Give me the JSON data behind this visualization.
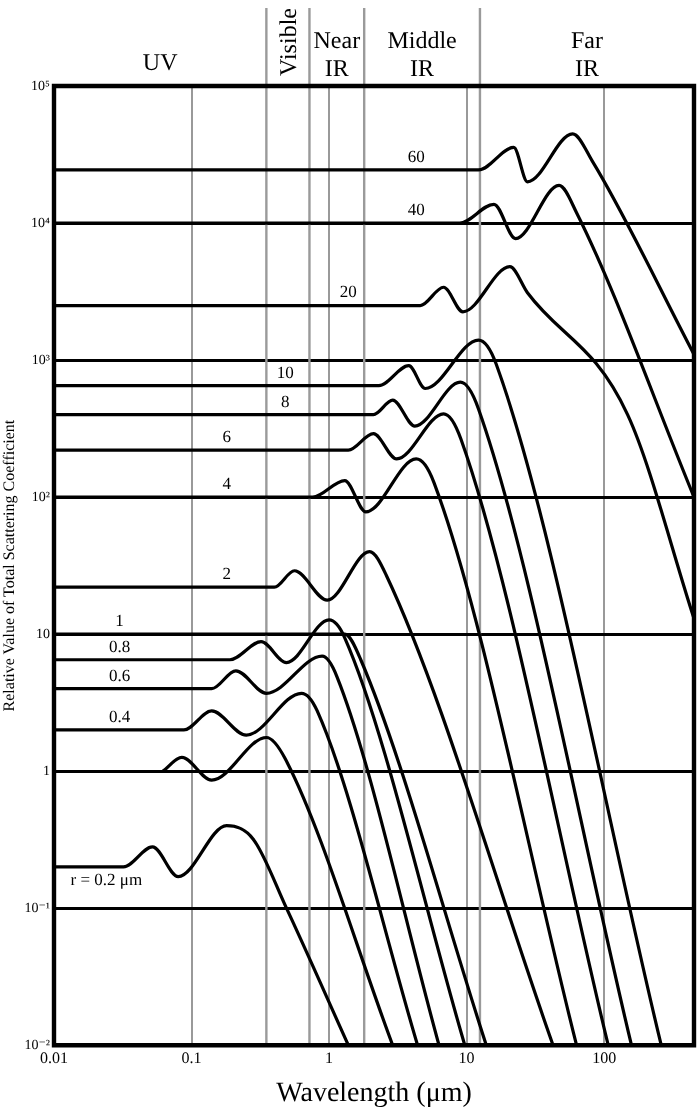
{
  "chart_data": {
    "type": "line",
    "xlabel": "Wavelength (μm)",
    "ylabel": "Relative Value of Total Scattering Coefficient",
    "log": "xy",
    "grid": true,
    "marker": "none",
    "line_style": "solid",
    "xlim": [
      0.01,
      450
    ],
    "ylim": [
      0.01,
      100000
    ],
    "xticks": [
      0.01,
      0.1,
      1,
      10,
      100
    ],
    "yticks": [
      {
        "value": 0.01,
        "label": "10⁻²"
      },
      {
        "value": 0.1,
        "label": "10⁻¹"
      },
      1,
      10,
      {
        "value": 100,
        "label": "10²"
      },
      {
        "value": 1000,
        "label": "10³"
      },
      {
        "value": 10000,
        "label": "10⁴"
      },
      {
        "value": 100000,
        "label": "10⁵"
      }
    ],
    "ref_lines": [
      {
        "axis": "x",
        "value": 0.35,
        "color": "#9a9a9a"
      },
      {
        "axis": "x",
        "value": 0.72,
        "color": "#9a9a9a"
      },
      {
        "axis": "x",
        "value": 1.8,
        "color": "#9a9a9a"
      },
      {
        "axis": "x",
        "value": 12.5,
        "color": "#9a9a9a"
      }
    ],
    "series": [
      {
        "color": "#000000",
        "x": [
          0.01,
          0.032,
          0.052,
          0.08,
          0.18,
          0.28,
          0.49,
          1.38
        ],
        "values": [
          0.2,
          0.2,
          0.28,
          0.17,
          0.4,
          0.32,
          0.1,
          0.01
        ]
      },
      {
        "color": "#000000",
        "x": [
          0.062,
          0.085,
          0.14,
          0.35,
          0.48,
          2.9
        ],
        "values": [
          1,
          1.26,
          0.86,
          1.76,
          1.23,
          0.01
        ]
      },
      {
        "color": "#000000",
        "x": [
          0.01,
          0.088,
          0.14,
          0.25,
          0.63,
          0.82,
          4.4
        ],
        "values": [
          2,
          2,
          2.75,
          1.83,
          3.7,
          2.75,
          0.01
        ]
      },
      {
        "color": "#000000",
        "x": [
          0.01,
          0.14,
          0.21,
          0.35,
          0.89,
          1.14,
          6.3
        ],
        "values": [
          4,
          4,
          5.4,
          3.7,
          6.9,
          4.9,
          0.01
        ]
      },
      {
        "color": "#000000",
        "x": [
          0.01,
          0.19,
          0.32,
          0.49,
          1.0,
          1.3,
          9.7
        ],
        "values": [
          6.5,
          6.5,
          8.8,
          6.2,
          12.7,
          9.4,
          0.01
        ]
      },
      {
        "color": "#000000",
        "x": [
          0.01,
          1.3,
          1.7,
          13.9
        ],
        "values": [
          10,
          10,
          6.5,
          0.01
        ]
      },
      {
        "color": "#000000",
        "x": [
          0.01,
          0.4,
          0.56,
          0.97,
          1.97,
          2.6,
          42.5
        ],
        "values": [
          22,
          22,
          29,
          17.7,
          40,
          27,
          0.01
        ]
      },
      {
        "color": "#000000",
        "x": [
          0.01,
          0.76,
          1.3,
          1.85,
          4.3,
          5.8,
          63
        ],
        "values": [
          100,
          100,
          132,
          78,
          190,
          127,
          0.01
        ]
      },
      {
        "color": "#000000",
        "x": [
          0.01,
          1.38,
          2.1,
          3.1,
          6.8,
          9.1,
          107
        ],
        "values": [
          220,
          220,
          290,
          190,
          405,
          264,
          0.01
        ]
      },
      {
        "color": "#000000",
        "x": [
          0.01,
          2.1,
          2.9,
          4.2,
          9.0,
          12.2,
          158
        ],
        "values": [
          400,
          400,
          510,
          330,
          690,
          440,
          0.01
        ]
      },
      {
        "color": "#000000",
        "x": [
          0.01,
          2.3,
          3.8,
          5.0,
          12.2,
          16.4,
          260
        ],
        "values": [
          650,
          650,
          910,
          620,
          1400,
          935,
          0.01
        ]
      },
      {
        "color": "#000000",
        "x": [
          0.01,
          4.6,
          6.8,
          9.4,
          20.6,
          27.7,
          148,
          450
        ],
        "values": [
          2500,
          2500,
          3400,
          2250,
          4800,
          3100,
          400,
          13
        ]
      },
      {
        "color": "#000000",
        "x": [
          0.01,
          8.9,
          15.8,
          22.7,
          47,
          63,
          450
        ],
        "values": [
          10000,
          10000,
          13700,
          7700,
          18800,
          11900,
          100
        ]
      },
      {
        "color": "#000000",
        "x": [
          0.01,
          12.2,
          22,
          27.7,
          59,
          82,
          450
        ],
        "values": [
          24400,
          24400,
          35600,
          20000,
          44700,
          28300,
          1100
        ]
      }
    ],
    "annotations": [
      "UV",
      "Visible",
      "Near IR",
      "Middle IR",
      "Far IR",
      {
        "text": "r = 0.2 μm",
        "x": 0.024,
        "y": 0.2
      },
      {
        "text": "0.4",
        "x": 0.03,
        "y": 2
      },
      {
        "text": "0.6",
        "x": 0.03,
        "y": 4
      },
      {
        "text": "0.8",
        "x": 0.03,
        "y": 6.5
      },
      {
        "text": "1",
        "x": 0.03,
        "y": 10
      },
      {
        "text": "2",
        "x": 0.18,
        "y": 22
      },
      {
        "text": "4",
        "x": 0.18,
        "y": 100
      },
      {
        "text": "6",
        "x": 0.18,
        "y": 220
      },
      {
        "text": "8",
        "x": 0.48,
        "y": 400
      },
      {
        "text": "10",
        "x": 0.48,
        "y": 650
      },
      {
        "text": "20",
        "x": 1.38,
        "y": 2500
      },
      {
        "text": "40",
        "x": 4.3,
        "y": 10000
      },
      {
        "text": "60",
        "x": 4.3,
        "y": 24400
      }
    ]
  }
}
